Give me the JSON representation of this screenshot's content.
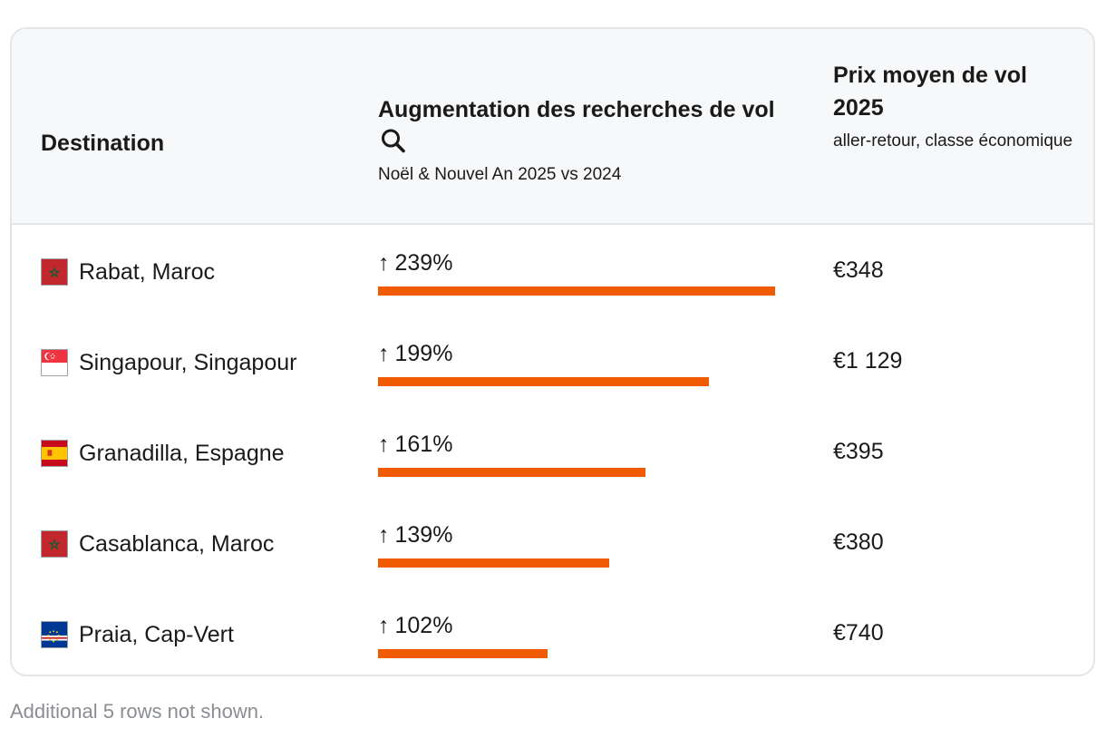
{
  "table": {
    "headers": {
      "destination": "Destination",
      "search_increase_title": "Augmentation des recherches de vol",
      "search_increase_sub": "Noël & Nouvel An 2025 vs 2024",
      "price_title": "Prix moyen de vol 2025",
      "price_sub": "aller-retour, classe économique"
    },
    "rows": [
      {
        "destination": "Rabat, Maroc",
        "flag": "morocco-flag",
        "arrow": "↑",
        "increase": "239%",
        "increase_value": 239,
        "price": "€348"
      },
      {
        "destination": "Singapour, Singapour",
        "flag": "singapore-flag",
        "arrow": "↑",
        "increase": "199%",
        "increase_value": 199,
        "price": "€1 129"
      },
      {
        "destination": "Granadilla, Espagne",
        "flag": "spain-flag",
        "arrow": "↑",
        "increase": "161%",
        "increase_value": 161,
        "price": "€395"
      },
      {
        "destination": "Casablanca, Maroc",
        "flag": "morocco-flag",
        "arrow": "↑",
        "increase": "139%",
        "increase_value": 139,
        "price": "€380"
      },
      {
        "destination": "Praia, Cap-Vert",
        "flag": "cape-verde-flag",
        "arrow": "↑",
        "increase": "102%",
        "increase_value": 102,
        "price": "€740"
      }
    ],
    "bar_max_value": 239,
    "colors": {
      "bar": "#f05a00",
      "header_bg": "#f7f8fa",
      "border": "#e4e5e8"
    }
  },
  "footer": {
    "note": "Additional 5 rows not shown."
  },
  "icons": {
    "search": "magnifier-icon"
  }
}
